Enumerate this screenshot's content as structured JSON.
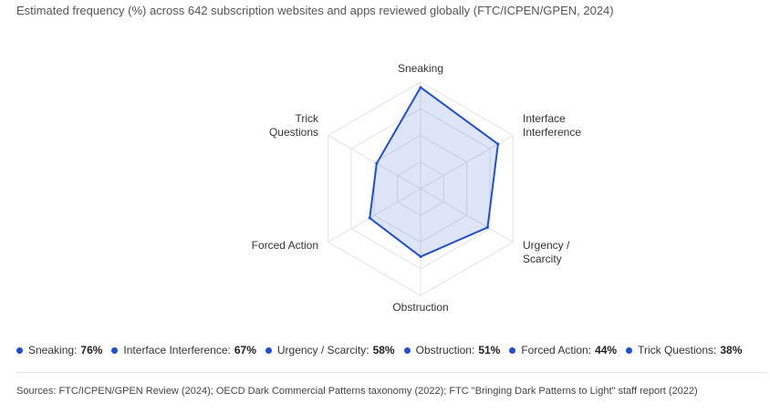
{
  "chart_data": {
    "type": "radar",
    "subtitle": "Estimated frequency (%) across 642 subscription websites and apps reviewed globally (FTC/ICPEN/GPEN, 2024)",
    "categories": [
      "Sneaking",
      "Interface Interference",
      "Urgency / Scarcity",
      "Obstruction",
      "Forced Action",
      "Trick Questions"
    ],
    "values": [
      76,
      67,
      58,
      51,
      44,
      38
    ],
    "value_labels": [
      "76%",
      "67%",
      "58%",
      "51%",
      "44%",
      "38%"
    ],
    "color": "#1f4fd8",
    "rlim": [
      0,
      80
    ],
    "rticks": [
      20,
      40,
      60,
      80
    ],
    "source": "Sources: FTC/ICPEN/GPEN Review (2024); OECD Dark Commercial Patterns taxonomy (2022); FTC \"Bringing Dark Patterns to Light\" staff report (2022)"
  }
}
